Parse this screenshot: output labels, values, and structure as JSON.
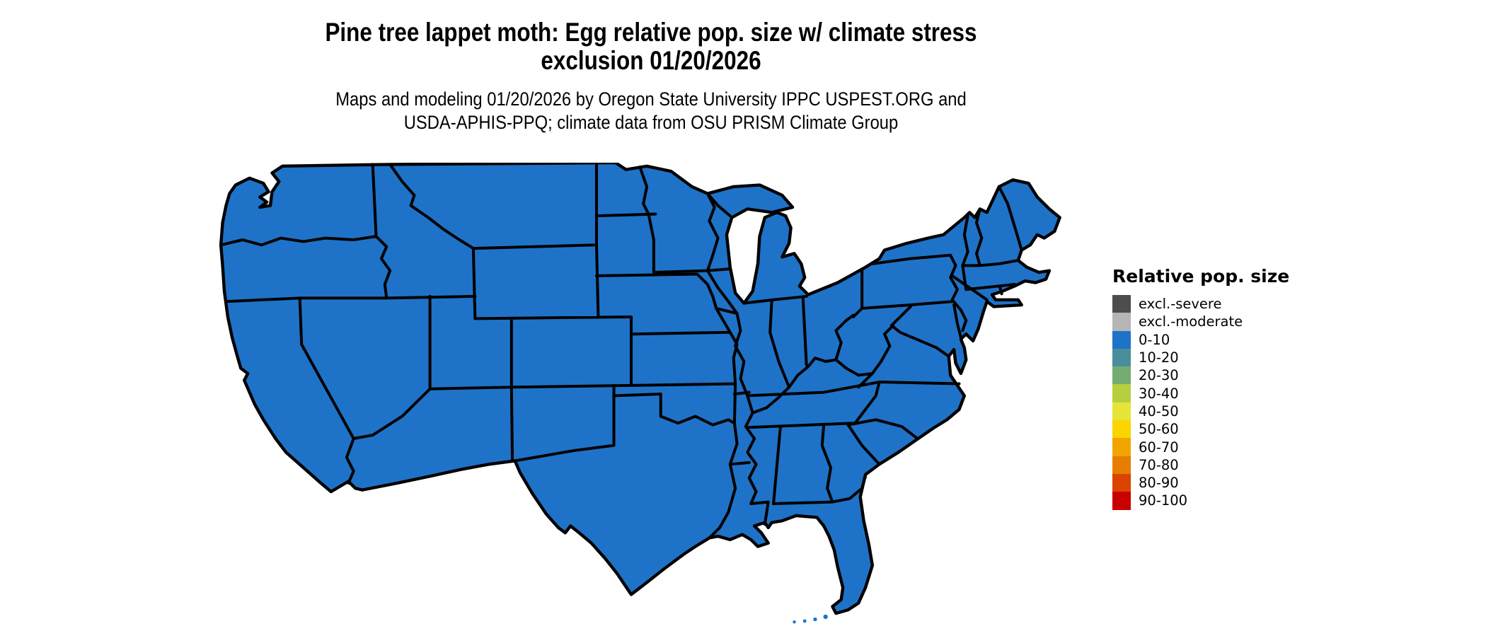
{
  "header": {
    "title_line1": "Pine tree lappet moth: Egg relative pop. size w/ climate stress",
    "title_line2": "exclusion 01/20/2026",
    "subtitle_line1": "Maps and modeling 01/20/2026 by Oregon State University IPPC USPEST.ORG and",
    "subtitle_line2": "USDA-APHIS-PPQ; climate data from OSU PRISM Climate Group"
  },
  "legend": {
    "title": "Relative pop. size",
    "items": [
      {
        "label": "excl.-severe",
        "color": "#4d4d4d"
      },
      {
        "label": "excl.-moderate",
        "color": "#b5b5b5"
      },
      {
        "label": "0-10",
        "color": "#1e73c8"
      },
      {
        "label": "10-20",
        "color": "#4a8d9c"
      },
      {
        "label": "20-30",
        "color": "#76ac72"
      },
      {
        "label": "30-40",
        "color": "#b6cf3f"
      },
      {
        "label": "40-50",
        "color": "#e7e438"
      },
      {
        "label": "50-60",
        "color": "#fbd501"
      },
      {
        "label": "60-70",
        "color": "#f0a500"
      },
      {
        "label": "70-80",
        "color": "#e77e00"
      },
      {
        "label": "80-90",
        "color": "#da4300"
      },
      {
        "label": "90-100",
        "color": "#ca0000"
      }
    ]
  },
  "map": {
    "fill_color": "#1e73c8",
    "border_color": "#000000",
    "water_color": "#ffffff"
  }
}
